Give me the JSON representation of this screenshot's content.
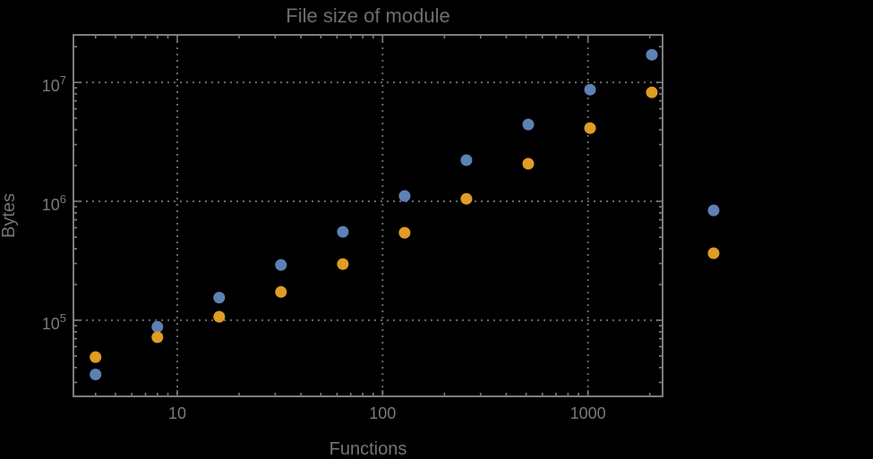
{
  "chart_data": {
    "type": "scatter",
    "title": "File size of module",
    "xlabel": "Functions",
    "ylabel": "Bytes",
    "x_scale": "log",
    "y_scale": "log",
    "xlim": [
      3.12,
      2310
    ],
    "ylim": [
      22900,
      25100000
    ],
    "grid": "dotted",
    "legend": "none",
    "x_major_ticks": [
      10,
      100,
      1000
    ],
    "x_tick_labels": [
      "10",
      "100",
      "1000"
    ],
    "y_major_ticks": [
      100000,
      1000000,
      10000000
    ],
    "y_tick_base": "10",
    "y_tick_exponents": [
      "5",
      "6",
      "7"
    ],
    "series": [
      {
        "name": "blue-series",
        "color": "#5E81B5",
        "x": [
          4,
          8,
          16,
          32,
          64,
          128,
          256,
          512,
          1024,
          2048,
          4096
        ],
        "y": [
          35000,
          88000,
          155000,
          292000,
          554000,
          1110000,
          2220000,
          4430000,
          8700000,
          17100000,
          840000
        ]
      },
      {
        "name": "orange-series",
        "color": "#E09C24",
        "x": [
          4,
          8,
          16,
          32,
          64,
          128,
          256,
          512,
          1024,
          2048,
          4096
        ],
        "y": [
          49000,
          72000,
          107000,
          173000,
          297000,
          545000,
          1050000,
          2070000,
          4130000,
          8260000,
          366000
        ]
      }
    ],
    "colors": {
      "background": "#000000",
      "frame": "#7d7d7d",
      "grid": "#6a6a6a",
      "tick_text": "#7a7a7a",
      "title_text": "#6e6e6e",
      "axis_label_text": "#757575"
    }
  }
}
